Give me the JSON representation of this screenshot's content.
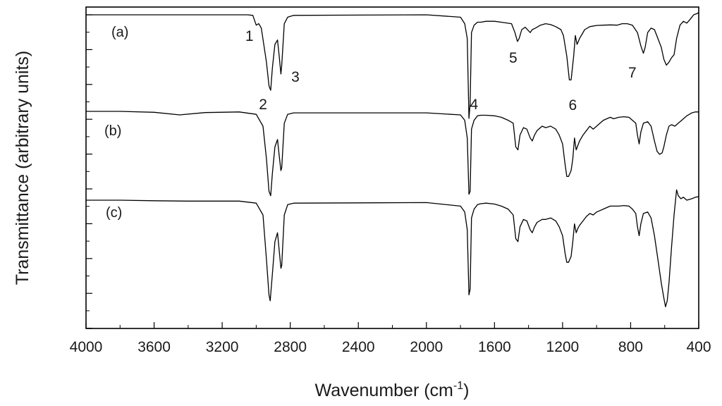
{
  "chart_data": {
    "type": "line",
    "title": "",
    "xlabel": "Wavenumber (cm",
    "xlabel_sup": "-1",
    "xlabel_tail": ")",
    "ylabel": "Transmittance (arbitrary units)",
    "xlim": [
      4000,
      400
    ],
    "x_reversed": true,
    "x_ticks": [
      4000,
      3600,
      3200,
      2800,
      2400,
      2000,
      1600,
      1200,
      800,
      400
    ],
    "y_tick_labels": false,
    "grid": false,
    "line_color": "#000000",
    "series": [
      {
        "name": "(a)",
        "offset": 0,
        "points": [
          [
            4000,
            0
          ],
          [
            3050,
            0
          ],
          [
            3020,
            -0.2
          ],
          [
            3000,
            -3.5
          ],
          [
            2985,
            -3.0
          ],
          [
            2970,
            -4.5
          ],
          [
            2940,
            -16
          ],
          [
            2925,
            -24
          ],
          [
            2915,
            -25.5
          ],
          [
            2905,
            -18
          ],
          [
            2890,
            -10
          ],
          [
            2875,
            -8.5
          ],
          [
            2865,
            -14
          ],
          [
            2855,
            -20
          ],
          [
            2850,
            -17
          ],
          [
            2835,
            -3
          ],
          [
            2815,
            -0.8
          ],
          [
            2780,
            -0.2
          ],
          [
            2000,
            0
          ],
          [
            1800,
            -0.8
          ],
          [
            1775,
            -3
          ],
          [
            1760,
            -8
          ],
          [
            1750,
            -35
          ],
          [
            1743,
            -30
          ],
          [
            1735,
            -6
          ],
          [
            1720,
            -3.5
          ],
          [
            1700,
            -2.5
          ],
          [
            1680,
            -2.5
          ],
          [
            1650,
            -2.2
          ],
          [
            1600,
            -2.2
          ],
          [
            1560,
            -2.5
          ],
          [
            1500,
            -3
          ],
          [
            1480,
            -6
          ],
          [
            1465,
            -9
          ],
          [
            1455,
            -8
          ],
          [
            1440,
            -5
          ],
          [
            1420,
            -4.2
          ],
          [
            1390,
            -6
          ],
          [
            1378,
            -5
          ],
          [
            1360,
            -4.5
          ],
          [
            1330,
            -3.5
          ],
          [
            1300,
            -3
          ],
          [
            1270,
            -3.3
          ],
          [
            1240,
            -4
          ],
          [
            1210,
            -5
          ],
          [
            1195,
            -7
          ],
          [
            1175,
            -14
          ],
          [
            1160,
            -22
          ],
          [
            1150,
            -22
          ],
          [
            1135,
            -14
          ],
          [
            1125,
            -7
          ],
          [
            1115,
            -10
          ],
          [
            1100,
            -8
          ],
          [
            1070,
            -5
          ],
          [
            1040,
            -4
          ],
          [
            1000,
            -3.6
          ],
          [
            960,
            -3.5
          ],
          [
            920,
            -3.4
          ],
          [
            880,
            -3.5
          ],
          [
            850,
            -3
          ],
          [
            820,
            -3
          ],
          [
            790,
            -3.5
          ],
          [
            760,
            -6
          ],
          [
            740,
            -10.5
          ],
          [
            725,
            -13
          ],
          [
            715,
            -11
          ],
          [
            700,
            -6
          ],
          [
            680,
            -4.5
          ],
          [
            660,
            -5
          ],
          [
            640,
            -8
          ],
          [
            620,
            -11
          ],
          [
            605,
            -15
          ],
          [
            590,
            -17
          ],
          [
            575,
            -16
          ],
          [
            560,
            -14.5
          ],
          [
            545,
            -13.5
          ],
          [
            530,
            -8
          ],
          [
            510,
            -3.5
          ],
          [
            490,
            -2.2
          ],
          [
            470,
            -2.8
          ],
          [
            450,
            -1.5
          ],
          [
            430,
            0
          ],
          [
            410,
            0.4
          ],
          [
            400,
            0.8
          ]
        ]
      },
      {
        "name": "(b)",
        "offset": 0,
        "points": [
          [
            4000,
            0
          ],
          [
            3800,
            0
          ],
          [
            3600,
            -0.3
          ],
          [
            3450,
            -1.2
          ],
          [
            3300,
            -0.4
          ],
          [
            3100,
            -0.2
          ],
          [
            3000,
            -1
          ],
          [
            2960,
            -5
          ],
          [
            2940,
            -16
          ],
          [
            2925,
            -27
          ],
          [
            2915,
            -28.5
          ],
          [
            2905,
            -21
          ],
          [
            2890,
            -12
          ],
          [
            2875,
            -9.5
          ],
          [
            2865,
            -15
          ],
          [
            2855,
            -20
          ],
          [
            2850,
            -19
          ],
          [
            2835,
            -4
          ],
          [
            2815,
            -1
          ],
          [
            2780,
            -0.5
          ],
          [
            2000,
            -0.5
          ],
          [
            1800,
            -1.2
          ],
          [
            1775,
            -3
          ],
          [
            1760,
            -9
          ],
          [
            1750,
            -28
          ],
          [
            1743,
            -27
          ],
          [
            1735,
            -6
          ],
          [
            1720,
            -3
          ],
          [
            1700,
            -1.5
          ],
          [
            1680,
            -1.3
          ],
          [
            1650,
            -1.3
          ],
          [
            1600,
            -1.5
          ],
          [
            1560,
            -2
          ],
          [
            1520,
            -3
          ],
          [
            1490,
            -4
          ],
          [
            1475,
            -12
          ],
          [
            1462,
            -13
          ],
          [
            1450,
            -8
          ],
          [
            1430,
            -5.5
          ],
          [
            1410,
            -6
          ],
          [
            1390,
            -9
          ],
          [
            1378,
            -10
          ],
          [
            1365,
            -8
          ],
          [
            1350,
            -6.5
          ],
          [
            1320,
            -5
          ],
          [
            1300,
            -5.5
          ],
          [
            1270,
            -5
          ],
          [
            1240,
            -6
          ],
          [
            1220,
            -8
          ],
          [
            1200,
            -11
          ],
          [
            1185,
            -18
          ],
          [
            1175,
            -22
          ],
          [
            1165,
            -22
          ],
          [
            1150,
            -20
          ],
          [
            1140,
            -16
          ],
          [
            1130,
            -9
          ],
          [
            1120,
            -13
          ],
          [
            1110,
            -11.5
          ],
          [
            1100,
            -10
          ],
          [
            1080,
            -8
          ],
          [
            1060,
            -6.5
          ],
          [
            1040,
            -5
          ],
          [
            1020,
            -6
          ],
          [
            1000,
            -5
          ],
          [
            980,
            -4
          ],
          [
            960,
            -3
          ],
          [
            940,
            -2.5
          ],
          [
            920,
            -2
          ],
          [
            900,
            -2.5
          ],
          [
            870,
            -2
          ],
          [
            840,
            -1.8
          ],
          [
            810,
            -2
          ],
          [
            790,
            -3
          ],
          [
            770,
            -4
          ],
          [
            760,
            -8
          ],
          [
            750,
            -11
          ],
          [
            740,
            -7
          ],
          [
            725,
            -4
          ],
          [
            700,
            -3.5
          ],
          [
            680,
            -5
          ],
          [
            660,
            -10
          ],
          [
            645,
            -13.5
          ],
          [
            630,
            -14.5
          ],
          [
            615,
            -14
          ],
          [
            605,
            -12
          ],
          [
            590,
            -8
          ],
          [
            575,
            -5
          ],
          [
            560,
            -4.5
          ],
          [
            540,
            -5
          ],
          [
            520,
            -4
          ],
          [
            500,
            -3
          ],
          [
            470,
            -1.5
          ],
          [
            440,
            -0.5
          ],
          [
            420,
            -0.2
          ],
          [
            400,
            -0.2
          ]
        ]
      },
      {
        "name": "(c)",
        "offset": 0,
        "points": [
          [
            4000,
            0
          ],
          [
            3800,
            0
          ],
          [
            3600,
            -0.2
          ],
          [
            3400,
            -0.3
          ],
          [
            3100,
            -0.3
          ],
          [
            3000,
            -1
          ],
          [
            2960,
            -5
          ],
          [
            2940,
            -20
          ],
          [
            2925,
            -32
          ],
          [
            2918,
            -34
          ],
          [
            2905,
            -25
          ],
          [
            2890,
            -14
          ],
          [
            2875,
            -11
          ],
          [
            2865,
            -17
          ],
          [
            2855,
            -23
          ],
          [
            2850,
            -22
          ],
          [
            2835,
            -5
          ],
          [
            2815,
            -1.5
          ],
          [
            2780,
            -1
          ],
          [
            2000,
            -0.8
          ],
          [
            1800,
            -2
          ],
          [
            1775,
            -4
          ],
          [
            1760,
            -10
          ],
          [
            1750,
            -32
          ],
          [
            1743,
            -30
          ],
          [
            1735,
            -6
          ],
          [
            1720,
            -3
          ],
          [
            1700,
            -1.5
          ],
          [
            1680,
            -1.2
          ],
          [
            1650,
            -1
          ],
          [
            1600,
            -1.3
          ],
          [
            1560,
            -2
          ],
          [
            1520,
            -3
          ],
          [
            1490,
            -5
          ],
          [
            1475,
            -13
          ],
          [
            1462,
            -14
          ],
          [
            1450,
            -9
          ],
          [
            1430,
            -6.5
          ],
          [
            1410,
            -7
          ],
          [
            1390,
            -10
          ],
          [
            1378,
            -11
          ],
          [
            1365,
            -9
          ],
          [
            1350,
            -7.5
          ],
          [
            1320,
            -6.5
          ],
          [
            1300,
            -6.5
          ],
          [
            1270,
            -6
          ],
          [
            1240,
            -7
          ],
          [
            1220,
            -9
          ],
          [
            1200,
            -12
          ],
          [
            1185,
            -18
          ],
          [
            1175,
            -21
          ],
          [
            1165,
            -21
          ],
          [
            1150,
            -19
          ],
          [
            1140,
            -14
          ],
          [
            1130,
            -8
          ],
          [
            1120,
            -11
          ],
          [
            1110,
            -9.5
          ],
          [
            1100,
            -8.5
          ],
          [
            1080,
            -7
          ],
          [
            1060,
            -5.5
          ],
          [
            1040,
            -4.5
          ],
          [
            1020,
            -5
          ],
          [
            1000,
            -4
          ],
          [
            980,
            -3.5
          ],
          [
            960,
            -3
          ],
          [
            940,
            -2.5
          ],
          [
            920,
            -2
          ],
          [
            900,
            -2
          ],
          [
            870,
            -2
          ],
          [
            840,
            -1.8
          ],
          [
            810,
            -2
          ],
          [
            790,
            -3
          ],
          [
            770,
            -4.5
          ],
          [
            760,
            -9
          ],
          [
            750,
            -12
          ],
          [
            740,
            -8
          ],
          [
            725,
            -4.5
          ],
          [
            700,
            -4
          ],
          [
            680,
            -6
          ],
          [
            660,
            -12
          ],
          [
            640,
            -20
          ],
          [
            620,
            -28
          ],
          [
            605,
            -33
          ],
          [
            595,
            -36
          ],
          [
            585,
            -34
          ],
          [
            575,
            -28
          ],
          [
            560,
            -16
          ],
          [
            545,
            -5
          ],
          [
            530,
            3.5
          ],
          [
            520,
            1.5
          ],
          [
            505,
            0.5
          ],
          [
            490,
            1
          ],
          [
            470,
            0
          ],
          [
            440,
            0.5
          ],
          [
            420,
            1
          ],
          [
            400,
            1.2
          ]
        ]
      }
    ],
    "annotations": [
      {
        "text": "1",
        "x": 3040
      },
      {
        "text": "2",
        "x": 2960
      },
      {
        "text": "3",
        "x": 2770
      },
      {
        "text": "4",
        "x": 1720
      },
      {
        "text": "5",
        "x": 1490
      },
      {
        "text": "6",
        "x": 1140
      },
      {
        "text": "7",
        "x": 790
      }
    ]
  }
}
